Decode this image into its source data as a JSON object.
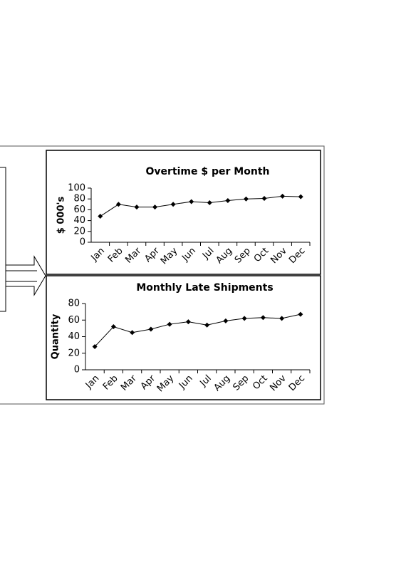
{
  "chart_data": [
    {
      "type": "line",
      "title": "Overtime $ per Month",
      "y_label": "$ 000's",
      "categories": [
        "Jan",
        "Feb",
        "Mar",
        "Apr",
        "May",
        "Jun",
        "Jul",
        "Aug",
        "Sep",
        "Oct",
        "Nov",
        "Dec"
      ],
      "values": [
        48,
        70,
        65,
        65,
        70,
        75,
        73,
        77,
        80,
        81,
        85,
        84
      ],
      "color": "#000000",
      "ylim": [
        0,
        100
      ],
      "yticks": [
        0,
        20,
        40,
        60,
        80,
        100
      ],
      "grid": false
    },
    {
      "type": "line",
      "title": "Monthly Late Shipments",
      "y_label": "Quantity",
      "categories": [
        "Jan",
        "Feb",
        "Mar",
        "Apr",
        "May",
        "Jun",
        "Jul",
        "Aug",
        "Sep",
        "Oct",
        "Nov",
        "Dec"
      ],
      "values": [
        28,
        52,
        45,
        49,
        55,
        58,
        54,
        59,
        62,
        63,
        62,
        67
      ],
      "color": "#000000",
      "ylim": [
        0,
        80
      ],
      "yticks": [
        0,
        20,
        40,
        60,
        80
      ],
      "grid": false
    }
  ]
}
